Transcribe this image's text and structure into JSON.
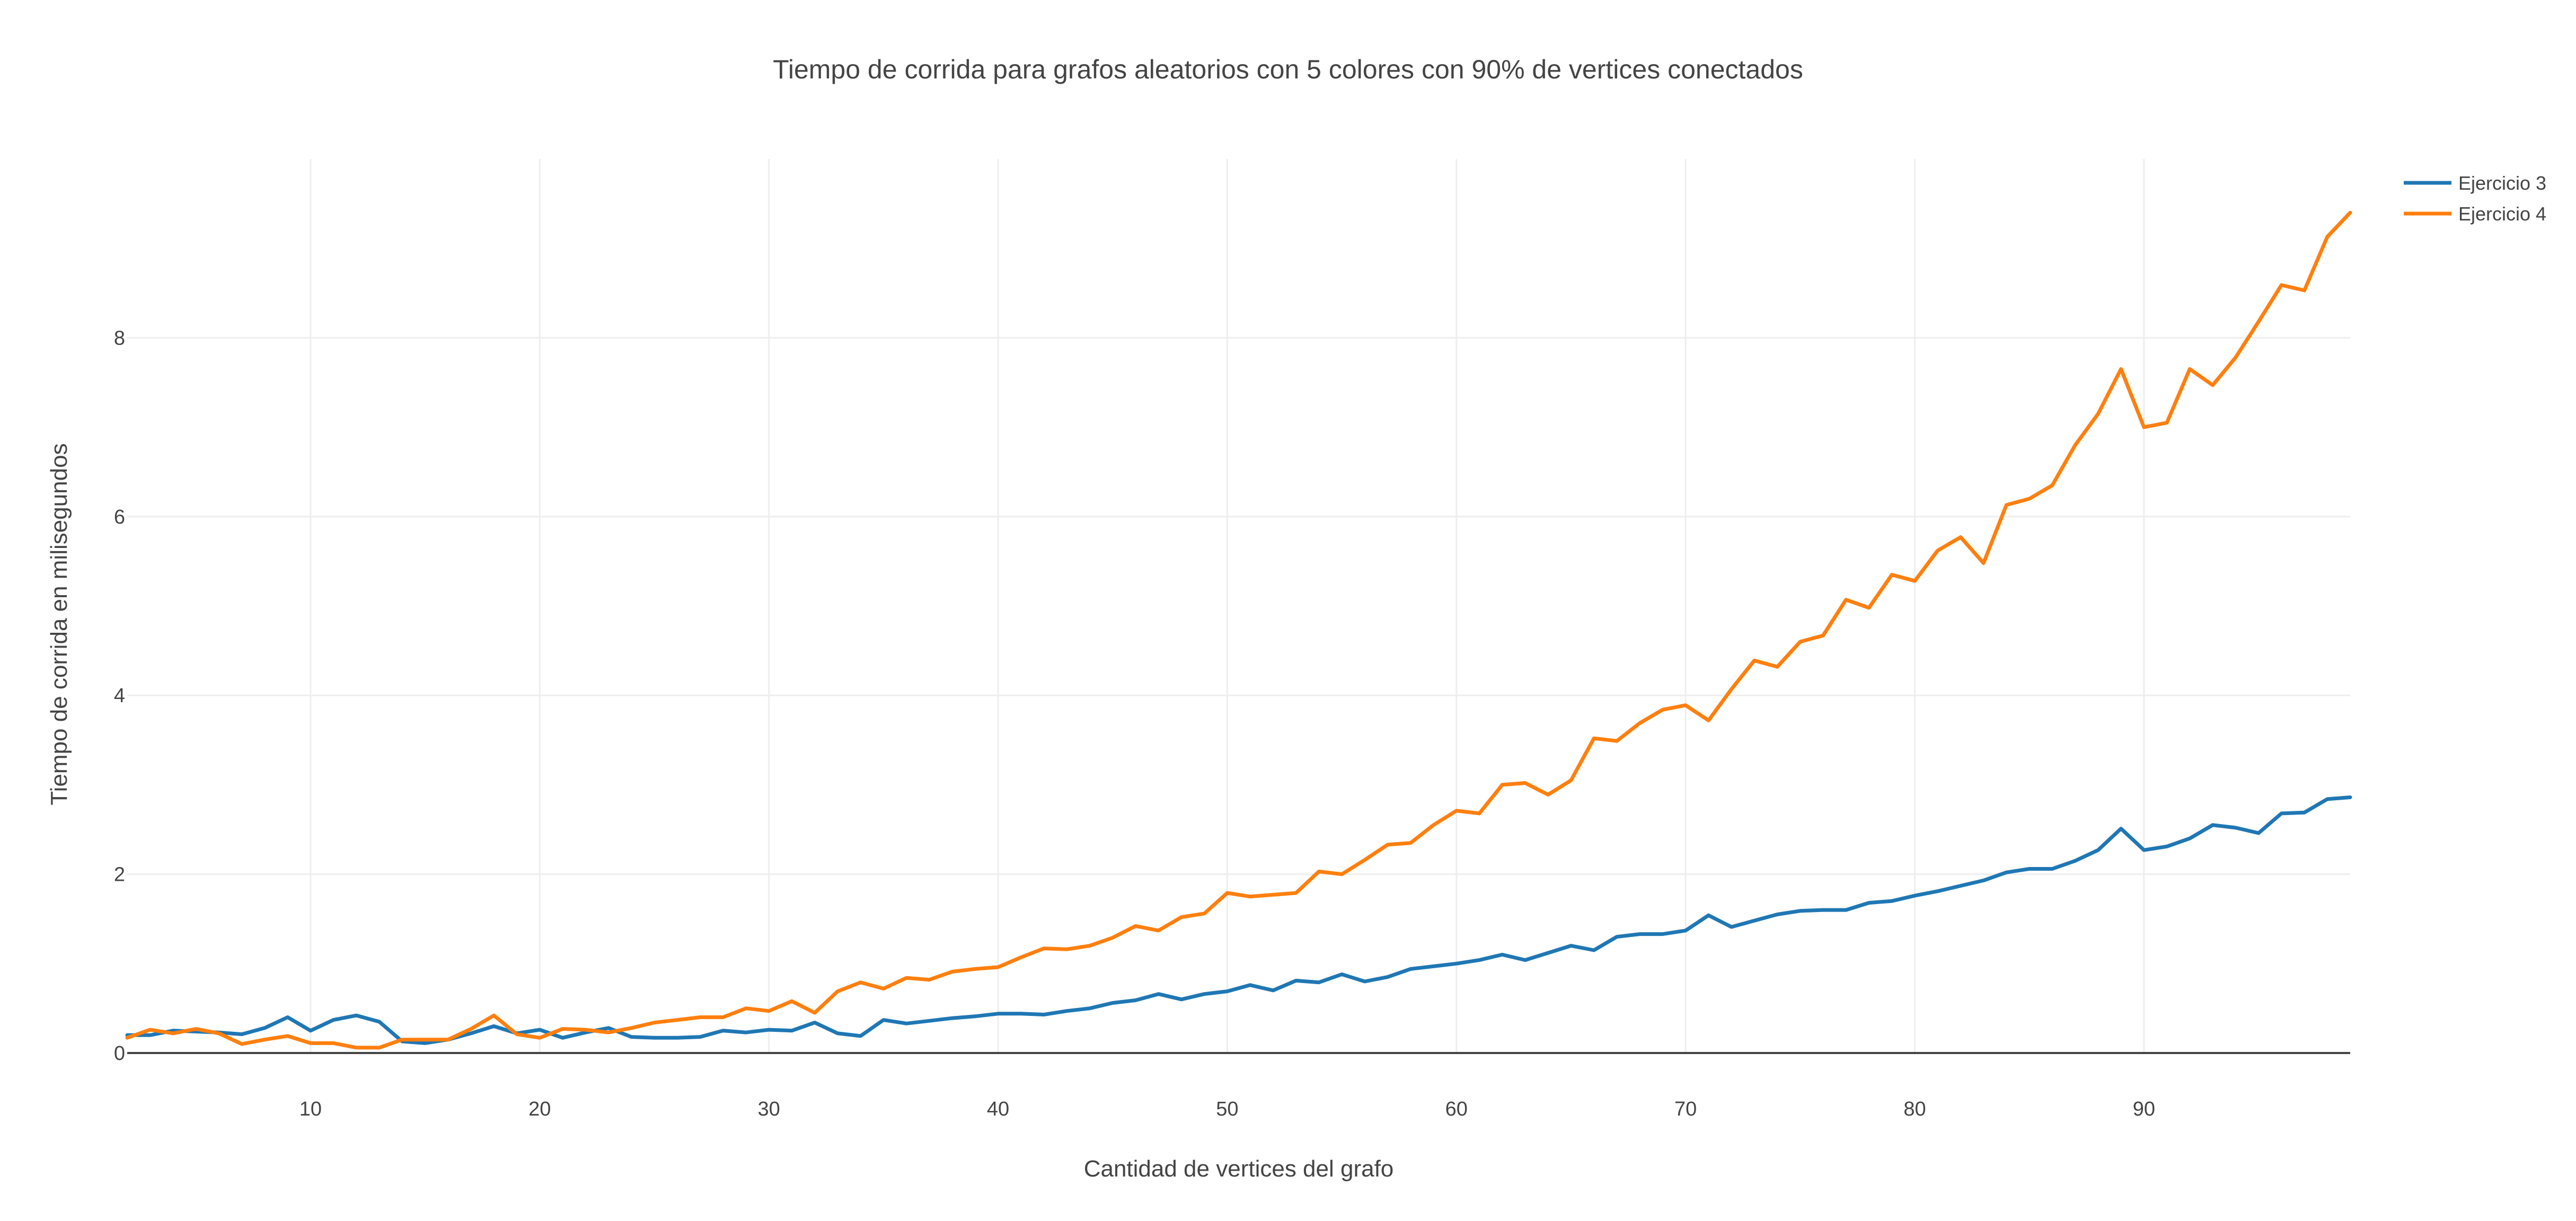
{
  "chart_data": {
    "type": "line",
    "title": "Tiempo de corrida para grafos aleatorios con 5 colores con 90% de vertices conectados",
    "xlabel": "Cantidad de vertices del grafo",
    "ylabel": "Tiempo de corrida en milisegundos",
    "xlim": [
      2,
      99
    ],
    "ylim": [
      0,
      10
    ],
    "xticks": [
      10,
      20,
      30,
      40,
      50,
      60,
      70,
      80,
      90
    ],
    "yticks": [
      0,
      2,
      4,
      6,
      8
    ],
    "grid": true,
    "legend_position": "top-right",
    "x": [
      2,
      3,
      4,
      5,
      6,
      7,
      8,
      9,
      10,
      11,
      12,
      13,
      14,
      15,
      16,
      17,
      18,
      19,
      20,
      21,
      22,
      23,
      24,
      25,
      26,
      27,
      28,
      29,
      30,
      31,
      32,
      33,
      34,
      35,
      36,
      37,
      38,
      39,
      40,
      41,
      42,
      43,
      44,
      45,
      46,
      47,
      48,
      49,
      50,
      51,
      52,
      53,
      54,
      55,
      56,
      57,
      58,
      59,
      60,
      61,
      62,
      63,
      64,
      65,
      66,
      67,
      68,
      69,
      70,
      71,
      72,
      73,
      74,
      75,
      76,
      77,
      78,
      79,
      80,
      81,
      82,
      83,
      84,
      85,
      86,
      87,
      88,
      89,
      90,
      91,
      92,
      93,
      94,
      95,
      96,
      97,
      98,
      99
    ],
    "series": [
      {
        "name": "Ejercicio 3",
        "color": "#1f77b4",
        "values": [
          0.2,
          0.2,
          0.25,
          0.24,
          0.23,
          0.21,
          0.28,
          0.4,
          0.25,
          0.37,
          0.42,
          0.35,
          0.13,
          0.11,
          0.15,
          0.22,
          0.3,
          0.22,
          0.26,
          0.17,
          0.23,
          0.28,
          0.18,
          0.17,
          0.17,
          0.18,
          0.25,
          0.23,
          0.26,
          0.25,
          0.34,
          0.22,
          0.19,
          0.37,
          0.33,
          0.36,
          0.39,
          0.41,
          0.44,
          0.44,
          0.43,
          0.47,
          0.5,
          0.56,
          0.59,
          0.66,
          0.6,
          0.66,
          0.69,
          0.76,
          0.7,
          0.81,
          0.79,
          0.88,
          0.8,
          0.85,
          0.94,
          0.97,
          1.0,
          1.04,
          1.1,
          1.04,
          1.12,
          1.2,
          1.15,
          1.3,
          1.33,
          1.33,
          1.37,
          1.54,
          1.41,
          1.48,
          1.55,
          1.59,
          1.6,
          1.6,
          1.68,
          1.7,
          1.76,
          1.81,
          1.87,
          1.93,
          2.02,
          2.06,
          2.06,
          2.15,
          2.27,
          2.51,
          2.27,
          2.31,
          2.4,
          2.55,
          2.52,
          2.46,
          2.68,
          2.69,
          2.84,
          2.86
        ]
      },
      {
        "name": "Ejercicio 4",
        "color": "#ff7f0e",
        "values": [
          0.17,
          0.26,
          0.22,
          0.27,
          0.22,
          0.1,
          0.15,
          0.19,
          0.11,
          0.11,
          0.06,
          0.06,
          0.15,
          0.15,
          0.15,
          0.27,
          0.42,
          0.21,
          0.17,
          0.27,
          0.26,
          0.23,
          0.28,
          0.34,
          0.37,
          0.4,
          0.4,
          0.5,
          0.47,
          0.58,
          0.45,
          0.69,
          0.79,
          0.72,
          0.84,
          0.82,
          0.91,
          0.94,
          0.96,
          1.07,
          1.17,
          1.16,
          1.2,
          1.29,
          1.42,
          1.37,
          1.52,
          1.56,
          1.79,
          1.75,
          1.77,
          1.79,
          2.03,
          2.0,
          2.16,
          2.33,
          2.35,
          2.55,
          2.71,
          2.68,
          3.0,
          3.02,
          2.89,
          3.05,
          3.52,
          3.49,
          3.69,
          3.84,
          3.89,
          3.72,
          4.07,
          4.39,
          4.32,
          4.6,
          4.67,
          5.07,
          4.98,
          5.35,
          5.28,
          5.62,
          5.77,
          5.48,
          6.13,
          6.2,
          6.35,
          6.8,
          7.15,
          7.65,
          7.0,
          7.05,
          7.65,
          7.47,
          7.78,
          8.18,
          8.59,
          8.53,
          9.13,
          9.4
        ]
      }
    ]
  }
}
